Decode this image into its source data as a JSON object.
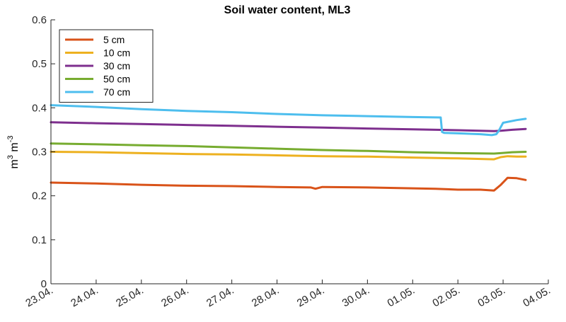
{
  "chart_data": {
    "type": "line",
    "title": "Soil water content, ML3",
    "ylabel": {
      "base": "m",
      "exp1": "3",
      "mid": " m",
      "exp2": "-3"
    },
    "xlabel": "",
    "ylim": [
      0,
      0.6
    ],
    "yticks": [
      0,
      0.1,
      0.2,
      0.3,
      0.4,
      0.5,
      0.6
    ],
    "ytick_labels": [
      "0",
      "0.1",
      "0.2",
      "0.3",
      "0.4",
      "0.5",
      "0.6"
    ],
    "xlim": [
      0,
      11
    ],
    "xtick_labels": [
      "23.04.",
      "24.04.",
      "25.04.",
      "26.04.",
      "27.04.",
      "28.04.",
      "29.04.",
      "30.04.",
      "01.05.",
      "02.05.",
      "03.05.",
      "04.05."
    ],
    "grid": false,
    "legend_position": "top-left",
    "series": [
      {
        "name": "5 cm",
        "color": "#D95319",
        "x": [
          0,
          1,
          2,
          3,
          4,
          5,
          5.75,
          5.85,
          6,
          7,
          8,
          8.5,
          9,
          9.5,
          9.8,
          9.95,
          10.1,
          10.3,
          10.5
        ],
        "y": [
          0.23,
          0.228,
          0.225,
          0.223,
          0.222,
          0.22,
          0.219,
          0.216,
          0.22,
          0.219,
          0.217,
          0.216,
          0.214,
          0.214,
          0.212,
          0.225,
          0.241,
          0.24,
          0.236
        ]
      },
      {
        "name": "10 cm",
        "color": "#EDB120",
        "x": [
          0,
          1,
          2,
          3,
          4,
          5,
          6,
          7,
          8,
          9,
          9.8,
          9.95,
          10.1,
          10.3,
          10.5
        ],
        "y": [
          0.3,
          0.299,
          0.297,
          0.295,
          0.294,
          0.292,
          0.29,
          0.289,
          0.287,
          0.285,
          0.283,
          0.288,
          0.29,
          0.289,
          0.289
        ]
      },
      {
        "name": "30 cm",
        "color": "#7E2F8E",
        "x": [
          0,
          1,
          2,
          3,
          4,
          5,
          6,
          7,
          8,
          9,
          9.8,
          9.95,
          10.2,
          10.5
        ],
        "y": [
          0.367,
          0.365,
          0.363,
          0.361,
          0.359,
          0.357,
          0.355,
          0.353,
          0.351,
          0.349,
          0.347,
          0.348,
          0.35,
          0.352
        ]
      },
      {
        "name": "50 cm",
        "color": "#77AC30",
        "x": [
          0,
          1,
          2,
          3,
          4,
          5,
          6,
          7,
          8,
          9,
          9.8,
          9.95,
          10.2,
          10.5
        ],
        "y": [
          0.319,
          0.317,
          0.315,
          0.313,
          0.31,
          0.307,
          0.304,
          0.302,
          0.299,
          0.297,
          0.296,
          0.297,
          0.299,
          0.3
        ]
      },
      {
        "name": "70 cm",
        "color": "#4DBEEE",
        "x": [
          0,
          1,
          2,
          3,
          4,
          5,
          6,
          7,
          8,
          8.62,
          8.65,
          8.7,
          9,
          9.5,
          9.75,
          9.85,
          9.9,
          10,
          10.3,
          10.5
        ],
        "y": [
          0.406,
          0.402,
          0.397,
          0.393,
          0.39,
          0.386,
          0.383,
          0.381,
          0.379,
          0.378,
          0.345,
          0.343,
          0.342,
          0.34,
          0.338,
          0.34,
          0.347,
          0.366,
          0.372,
          0.375
        ]
      }
    ]
  }
}
